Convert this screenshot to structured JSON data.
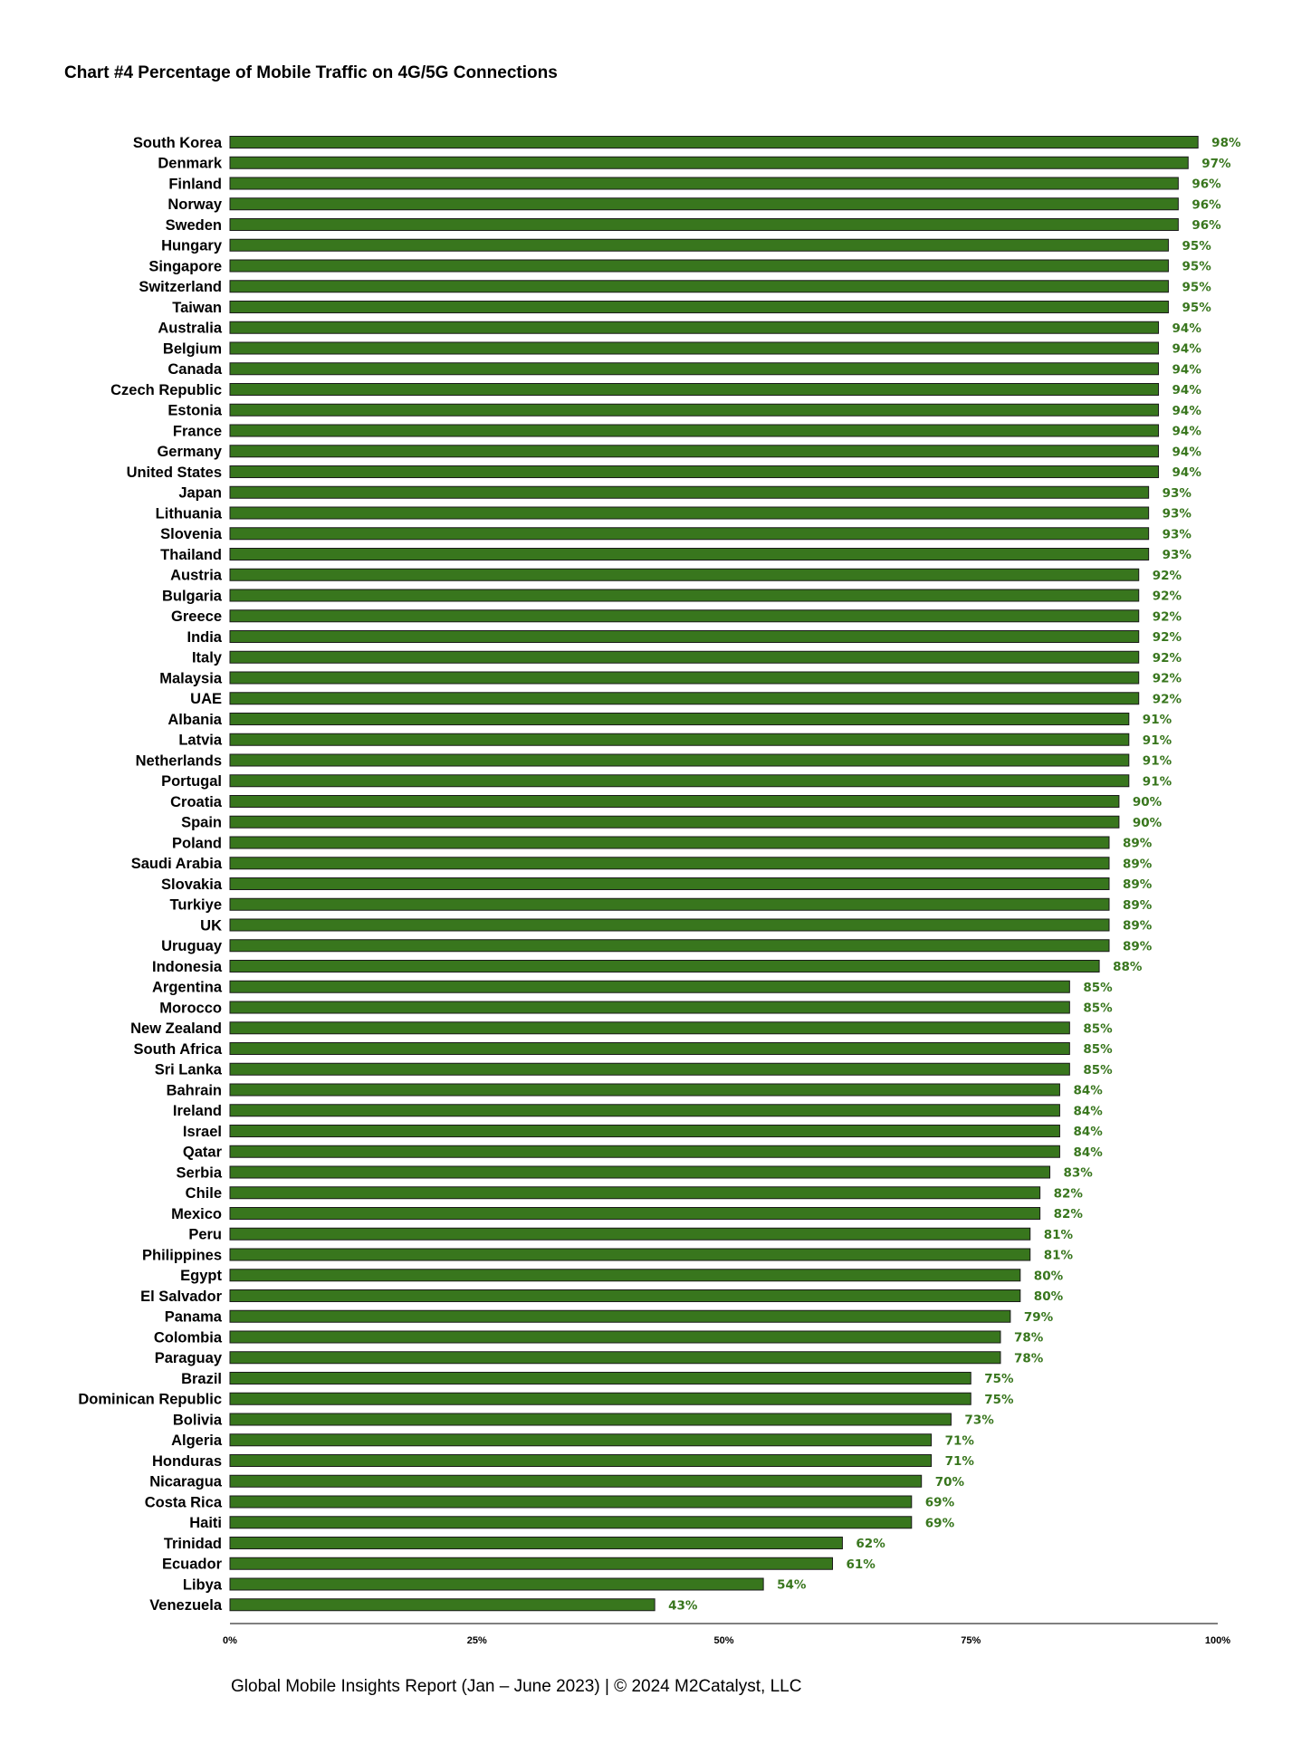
{
  "title": "Chart #4 Percentage of Mobile Traffic on 4G/5G Connections",
  "footer": "Global Mobile Insights Report (Jan – June 2023) | © 2024 M2Catalyst, LLC",
  "colors": {
    "bar_fill": "#38761d",
    "bar_stroke": "#1a1a1a",
    "value_label": "#38761d"
  },
  "chart_data": {
    "type": "bar",
    "orientation": "horizontal",
    "title": "Chart #4 Percentage of Mobile Traffic on 4G/5G Connections",
    "xlabel": "",
    "ylabel": "",
    "xlim": [
      0,
      100
    ],
    "x_ticks": [
      "0%",
      "25%",
      "50%",
      "75%",
      "100%"
    ],
    "grid": false,
    "legend": "none",
    "value_suffix": "%",
    "categories": [
      "South Korea",
      "Denmark",
      "Finland",
      "Norway",
      "Sweden",
      "Hungary",
      "Singapore",
      "Switzerland",
      "Taiwan",
      "Australia",
      "Belgium",
      "Canada",
      "Czech Republic",
      "Estonia",
      "France",
      "Germany",
      "United States",
      "Japan",
      "Lithuania",
      "Slovenia",
      "Thailand",
      "Austria",
      "Bulgaria",
      "Greece",
      "India",
      "Italy",
      "Malaysia",
      "UAE",
      "Albania",
      "Latvia",
      "Netherlands",
      "Portugal",
      "Croatia",
      "Spain",
      "Poland",
      "Saudi Arabia",
      "Slovakia",
      "Turkiye",
      "UK",
      "Uruguay",
      "Indonesia",
      "Argentina",
      "Morocco",
      "New Zealand",
      "South Africa",
      "Sri Lanka",
      "Bahrain",
      "Ireland",
      "Israel",
      "Qatar",
      "Serbia",
      "Chile",
      "Mexico",
      "Peru",
      "Philippines",
      "Egypt",
      "El Salvador",
      "Panama",
      "Colombia",
      "Paraguay",
      "Brazil",
      "Dominican Republic",
      "Bolivia",
      "Algeria",
      "Honduras",
      "Nicaragua",
      "Costa Rica",
      "Haiti",
      "Trinidad",
      "Ecuador",
      "Libya",
      "Venezuela"
    ],
    "values": [
      98,
      97,
      96,
      96,
      96,
      95,
      95,
      95,
      95,
      94,
      94,
      94,
      94,
      94,
      94,
      94,
      94,
      93,
      93,
      93,
      93,
      92,
      92,
      92,
      92,
      92,
      92,
      92,
      91,
      91,
      91,
      91,
      90,
      90,
      89,
      89,
      89,
      89,
      89,
      89,
      88,
      85,
      85,
      85,
      85,
      85,
      84,
      84,
      84,
      84,
      83,
      82,
      82,
      81,
      81,
      80,
      80,
      79,
      78,
      78,
      75,
      75,
      73,
      71,
      71,
      70,
      69,
      69,
      62,
      61,
      54,
      43
    ]
  }
}
